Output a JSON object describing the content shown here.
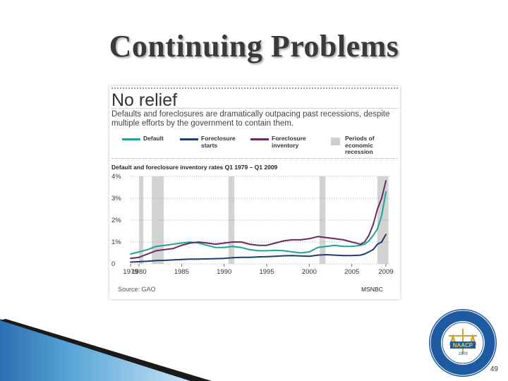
{
  "slide": {
    "title": "Continuing Problems",
    "page_number": "49"
  },
  "chart_data": {
    "type": "line",
    "headline": "No relief",
    "subtitle": "Defaults and foreclosures are dramatically outpacing past recessions, despite multiple efforts by the government to contain them.",
    "title": "Default and foreclosure inventory rates Q1 1979 – Q1 2009",
    "xlabel": "",
    "ylabel": "",
    "xlim": [
      1979,
      2009.5
    ],
    "ylim": [
      0,
      4
    ],
    "y_tick_labels": [
      "0",
      "1%",
      "2%",
      "3%",
      "4%"
    ],
    "y_ticks": [
      0,
      1,
      2,
      3,
      4
    ],
    "x_tick_labels": [
      "1979",
      "1980",
      "1985",
      "1990",
      "1995",
      "2000",
      "2005",
      "2009"
    ],
    "x_ticks": [
      1979,
      1980,
      1985,
      1990,
      1995,
      2000,
      2005,
      2009
    ],
    "recessions": [
      [
        1980.0,
        1980.5
      ],
      [
        1981.5,
        1982.9
      ],
      [
        1990.5,
        1991.2
      ],
      [
        2001.2,
        2001.9
      ],
      [
        2008.0,
        2009.3
      ]
    ],
    "legend": {
      "default": "Default",
      "starts": "Foreclosure starts",
      "inventory": "Foreclosure inventory",
      "recession": "Periods of economic recession"
    },
    "series": [
      {
        "name": "Default",
        "color": "#22a39a",
        "x": [
          1979,
          1980,
          1981,
          1982,
          1983,
          1984,
          1985,
          1986,
          1987,
          1988,
          1989,
          1990,
          1991,
          1992,
          1993,
          1994,
          1995,
          1996,
          1997,
          1998,
          1999,
          2000,
          2001,
          2002,
          2003,
          2004,
          2005,
          2006,
          2006.5,
          2007,
          2007.5,
          2008,
          2008.5,
          2009
        ],
        "values": [
          0.45,
          0.55,
          0.65,
          0.8,
          0.85,
          0.9,
          0.95,
          1.0,
          0.95,
          0.85,
          0.75,
          0.75,
          0.8,
          0.75,
          0.65,
          0.6,
          0.6,
          0.62,
          0.6,
          0.55,
          0.5,
          0.55,
          0.75,
          0.8,
          0.85,
          0.8,
          0.8,
          0.85,
          0.9,
          1.05,
          1.3,
          1.6,
          2.2,
          3.3
        ]
      },
      {
        "name": "Foreclosure starts",
        "color": "#1f3d6e",
        "x": [
          1979,
          1980,
          1981,
          1982,
          1983,
          1984,
          1985,
          1986,
          1987,
          1988,
          1989,
          1990,
          1991,
          1992,
          1993,
          1994,
          1995,
          1996,
          1997,
          1998,
          1999,
          2000,
          2001,
          2002,
          2003,
          2004,
          2005,
          2006,
          2006.5,
          2007,
          2007.5,
          2008,
          2008.5,
          2009
        ],
        "values": [
          0.08,
          0.1,
          0.12,
          0.15,
          0.16,
          0.18,
          0.2,
          0.22,
          0.22,
          0.23,
          0.24,
          0.25,
          0.28,
          0.3,
          0.3,
          0.32,
          0.33,
          0.35,
          0.37,
          0.38,
          0.36,
          0.35,
          0.4,
          0.42,
          0.4,
          0.38,
          0.38,
          0.4,
          0.45,
          0.55,
          0.65,
          0.9,
          1.0,
          1.35
        ]
      },
      {
        "name": "Foreclosure inventory",
        "color": "#6a2a5e",
        "x": [
          1979,
          1980,
          1981,
          1982,
          1983,
          1984,
          1985,
          1986,
          1987,
          1988,
          1989,
          1990,
          1991,
          1992,
          1993,
          1994,
          1995,
          1996,
          1997,
          1998,
          1999,
          2000,
          2001,
          2002,
          2003,
          2004,
          2005,
          2006,
          2006.5,
          2007,
          2007.5,
          2008,
          2008.5,
          2009
        ],
        "values": [
          0.25,
          0.3,
          0.45,
          0.6,
          0.65,
          0.7,
          0.85,
          0.95,
          1.0,
          0.95,
          0.9,
          0.95,
          1.0,
          1.0,
          0.9,
          0.85,
          0.85,
          0.95,
          1.05,
          1.1,
          1.1,
          1.15,
          1.25,
          1.2,
          1.15,
          1.1,
          1.0,
          0.9,
          1.0,
          1.3,
          1.8,
          2.5,
          3.0,
          3.8
        ]
      }
    ],
    "source": "Source: GAO",
    "credit": "MSNBC",
    "grid": "dotted horizontal",
    "legend_position": "top"
  }
}
